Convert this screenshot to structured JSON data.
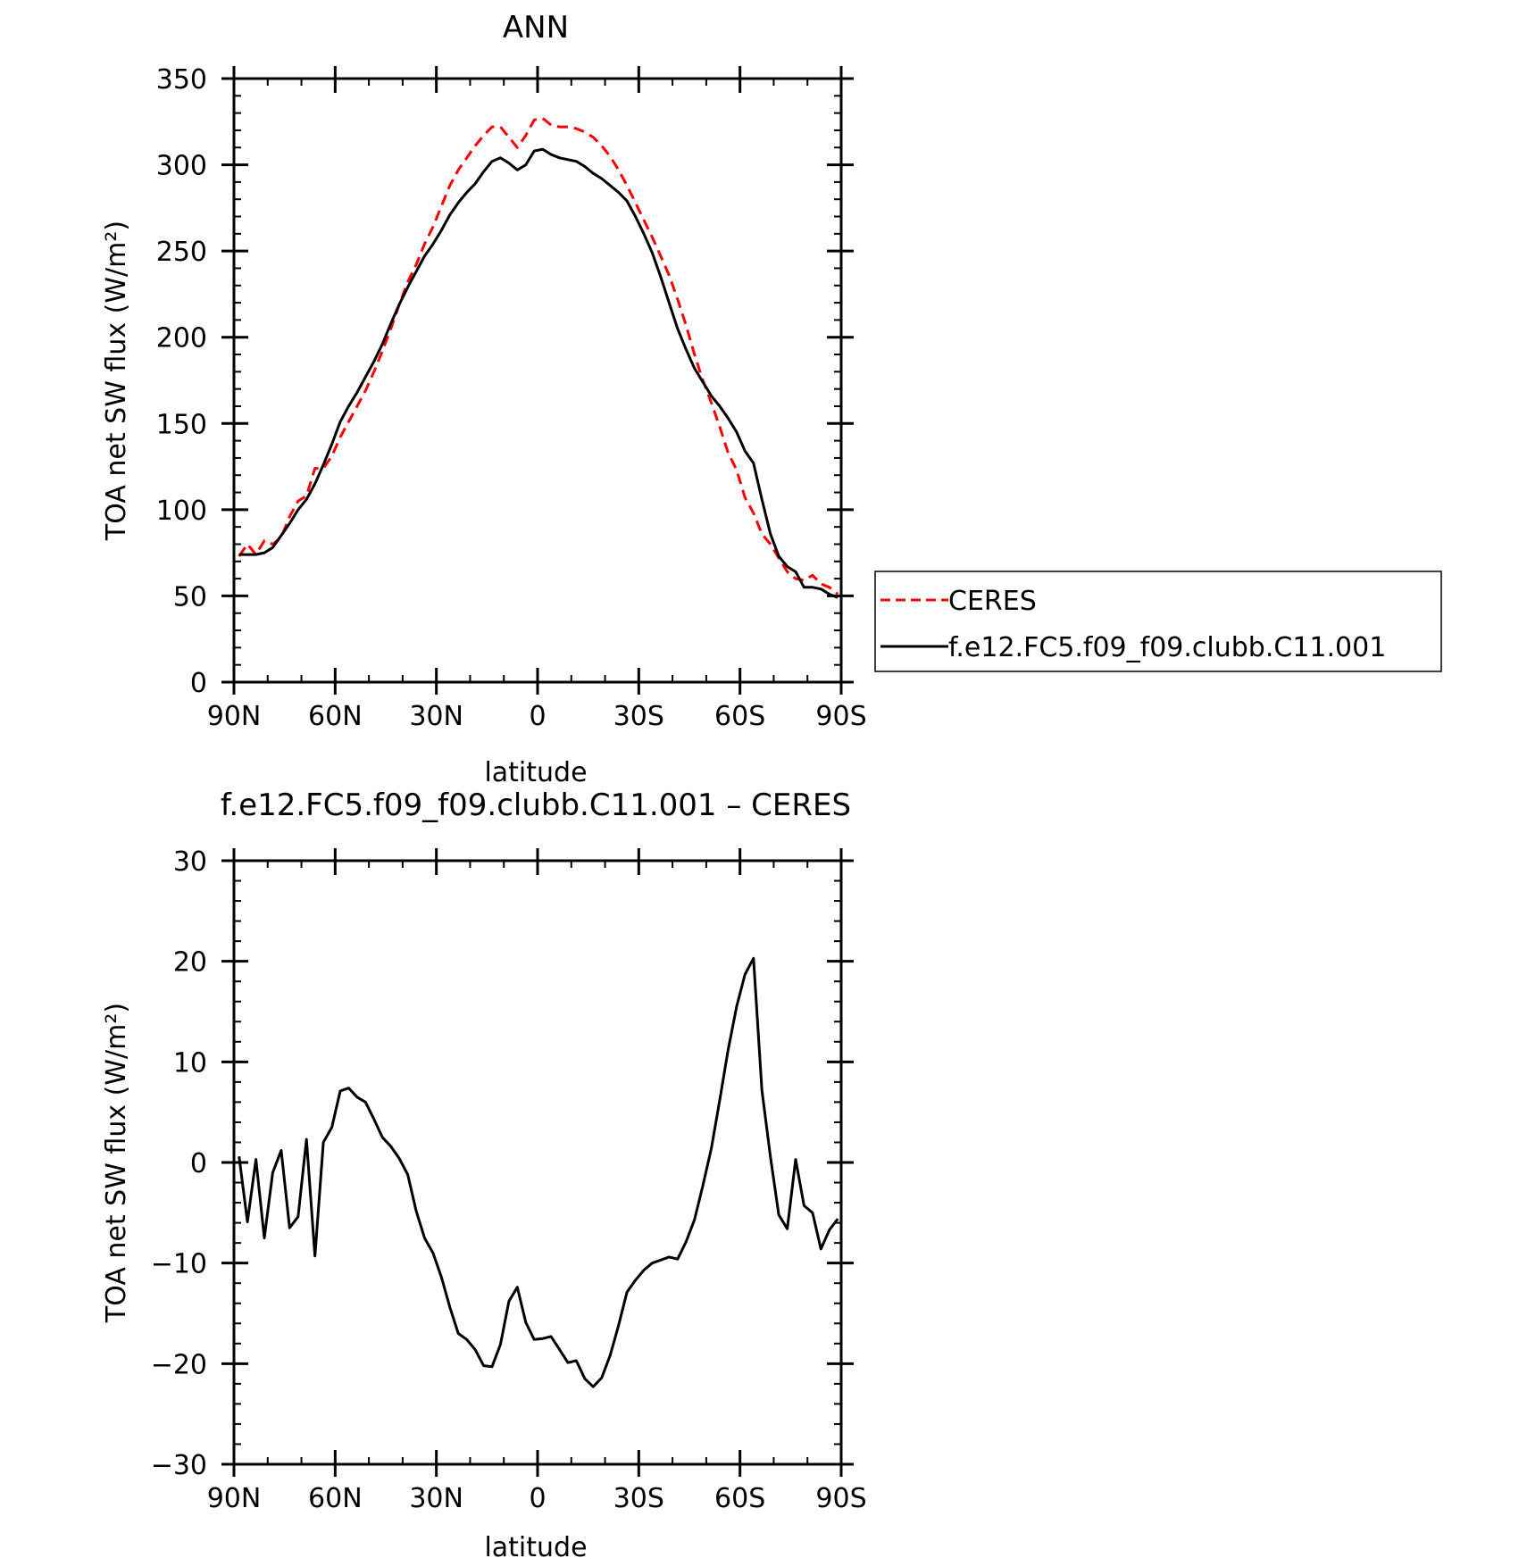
{
  "chart_data": [
    {
      "type": "line",
      "title": "ANN",
      "xlabel": "latitude",
      "ylabel": "TOA net SW flux (W/m²)",
      "xlim": [
        90,
        -90
      ],
      "ylim": [
        0,
        350
      ],
      "xticks": [
        {
          "value": 90,
          "label": "90N"
        },
        {
          "value": 60,
          "label": "60N"
        },
        {
          "value": 30,
          "label": "30N"
        },
        {
          "value": 0,
          "label": "0"
        },
        {
          "value": -30,
          "label": "30S"
        },
        {
          "value": -60,
          "label": "60S"
        },
        {
          "value": -90,
          "label": "90S"
        }
      ],
      "yticks": [
        0,
        50,
        100,
        150,
        200,
        250,
        300,
        350
      ],
      "legend": "right",
      "series": [
        {
          "name": "CERES",
          "color": "#ff0000",
          "dash": true,
          "points": [
            [
              88.5,
              73
            ],
            [
              86,
              80
            ],
            [
              83.5,
              74
            ],
            [
              81,
              82
            ],
            [
              78.5,
              80
            ],
            [
              76,
              84
            ],
            [
              73.5,
              96
            ],
            [
              71,
              105
            ],
            [
              68.5,
              108
            ],
            [
              66,
              124
            ],
            [
              63.5,
              124
            ],
            [
              61,
              131
            ],
            [
              58.5,
              142
            ],
            [
              56,
              151
            ],
            [
              53.5,
              160
            ],
            [
              51,
              169
            ],
            [
              48.5,
              180
            ],
            [
              46,
              192
            ],
            [
              43.5,
              205
            ],
            [
              41,
              219
            ],
            [
              38.5,
              232
            ],
            [
              36,
              242
            ],
            [
              33.5,
              254
            ],
            [
              31,
              264
            ],
            [
              28.5,
              276
            ],
            [
              26,
              288
            ],
            [
              23.5,
              297
            ],
            [
              21,
              304
            ],
            [
              18.5,
              311
            ],
            [
              16,
              317
            ],
            [
              13.5,
              322
            ],
            [
              11,
              322
            ],
            [
              8.5,
              316
            ],
            [
              6,
              310
            ],
            [
              3.5,
              317
            ],
            [
              1,
              326
            ],
            [
              -1.5,
              327
            ],
            [
              -4,
              323
            ],
            [
              -6.5,
              322
            ],
            [
              -9,
              322
            ],
            [
              -11.5,
              321
            ],
            [
              -14,
              319
            ],
            [
              -16.5,
              316
            ],
            [
              -19,
              311
            ],
            [
              -21.5,
              305
            ],
            [
              -24,
              297
            ],
            [
              -26.5,
              288
            ],
            [
              -29,
              278
            ],
            [
              -31.5,
              268
            ],
            [
              -34,
              258
            ],
            [
              -36.5,
              247
            ],
            [
              -39,
              236
            ],
            [
              -41.5,
              222
            ],
            [
              -44,
              207
            ],
            [
              -46.5,
              190
            ],
            [
              -49,
              175
            ],
            [
              -51.5,
              162
            ],
            [
              -54,
              148
            ],
            [
              -56.5,
              133
            ],
            [
              -59,
              123
            ],
            [
              -61.5,
              107
            ],
            [
              -64,
              98
            ],
            [
              -66.5,
              86
            ],
            [
              -69,
              80
            ],
            [
              -71.5,
              72
            ],
            [
              -74,
              64
            ],
            [
              -76.5,
              60
            ],
            [
              -79,
              59
            ],
            [
              -81.5,
              62
            ],
            [
              -84,
              57
            ],
            [
              -86.5,
              55
            ],
            [
              -89,
              51
            ]
          ]
        },
        {
          "name": "f.e12.FC5.f09_f09.clubb.C11.001",
          "color": "#000000",
          "dash": false,
          "points": [
            [
              88.5,
              74
            ],
            [
              86,
              74
            ],
            [
              83.5,
              74
            ],
            [
              81,
              75
            ],
            [
              78.5,
              78
            ],
            [
              76,
              85
            ],
            [
              73.5,
              92
            ],
            [
              71,
              100
            ],
            [
              68.5,
              106
            ],
            [
              66,
              115
            ],
            [
              63.5,
              126
            ],
            [
              61,
              138
            ],
            [
              58.5,
              151
            ],
            [
              56,
              160
            ],
            [
              53.5,
              168
            ],
            [
              51,
              177
            ],
            [
              48.5,
              186
            ],
            [
              46,
              196
            ],
            [
              43.5,
              208
            ],
            [
              41,
              219
            ],
            [
              38.5,
              229
            ],
            [
              36,
              238
            ],
            [
              33.5,
              247
            ],
            [
              31,
              254
            ],
            [
              28.5,
              262
            ],
            [
              26,
              271
            ],
            [
              23.5,
              278
            ],
            [
              21,
              284
            ],
            [
              18.5,
              289
            ],
            [
              16,
              296
            ],
            [
              13.5,
              302
            ],
            [
              11,
              304
            ],
            [
              8.5,
              301
            ],
            [
              6,
              297
            ],
            [
              3.5,
              300
            ],
            [
              1,
              308
            ],
            [
              -1.5,
              309
            ],
            [
              -4,
              306
            ],
            [
              -6.5,
              304
            ],
            [
              -9,
              303
            ],
            [
              -11.5,
              302
            ],
            [
              -14,
              299
            ],
            [
              -16.5,
              295
            ],
            [
              -19,
              292
            ],
            [
              -21.5,
              288
            ],
            [
              -24,
              284
            ],
            [
              -26.5,
              279
            ],
            [
              -29,
              270
            ],
            [
              -31.5,
              260
            ],
            [
              -34,
              249
            ],
            [
              -36.5,
              235
            ],
            [
              -39,
              220
            ],
            [
              -41.5,
              205
            ],
            [
              -44,
              193
            ],
            [
              -46.5,
              182
            ],
            [
              -49,
              174
            ],
            [
              -51.5,
              166
            ],
            [
              -54,
              160
            ],
            [
              -56.5,
              153
            ],
            [
              -59,
              145
            ],
            [
              -61.5,
              134
            ],
            [
              -64,
              127
            ],
            [
              -66.5,
              106
            ],
            [
              -69,
              86
            ],
            [
              -71.5,
              73
            ],
            [
              -74,
              67
            ],
            [
              -76.5,
              64
            ],
            [
              -79,
              55
            ],
            [
              -81.5,
              55
            ],
            [
              -84,
              54
            ],
            [
              -86.5,
              51
            ],
            [
              -89,
              49
            ]
          ]
        }
      ]
    },
    {
      "type": "line",
      "title": "f.e12.FC5.f09_f09.clubb.C11.001 – CERES",
      "xlabel": "latitude",
      "ylabel": "TOA net SW flux (W/m²)",
      "xlim": [
        90,
        -90
      ],
      "ylim": [
        -30,
        30
      ],
      "xticks": [
        {
          "value": 90,
          "label": "90N"
        },
        {
          "value": 60,
          "label": "60N"
        },
        {
          "value": 30,
          "label": "30N"
        },
        {
          "value": 0,
          "label": "0"
        },
        {
          "value": -30,
          "label": "30S"
        },
        {
          "value": -60,
          "label": "60S"
        },
        {
          "value": -90,
          "label": "90S"
        }
      ],
      "yticks": [
        -30,
        -20,
        -10,
        0,
        10,
        20,
        30
      ],
      "series": [
        {
          "color": "#000000",
          "dash": false,
          "points": [
            [
              88.5,
              0.6
            ],
            [
              86,
              -5.9
            ],
            [
              83.5,
              0.3
            ],
            [
              81,
              -7.5
            ],
            [
              78.5,
              -1.0
            ],
            [
              76,
              1.2
            ],
            [
              73.5,
              -6.5
            ],
            [
              71,
              -5.4
            ],
            [
              68.5,
              2.3
            ],
            [
              66,
              -9.3
            ],
            [
              63.5,
              2.0
            ],
            [
              61,
              3.5
            ],
            [
              58.5,
              7.1
            ],
            [
              56,
              7.4
            ],
            [
              53.5,
              6.5
            ],
            [
              51,
              6.0
            ],
            [
              48.5,
              4.3
            ],
            [
              46,
              2.5
            ],
            [
              43.5,
              1.6
            ],
            [
              41,
              0.4
            ],
            [
              38.5,
              -1.2
            ],
            [
              36,
              -4.8
            ],
            [
              33.5,
              -7.5
            ],
            [
              31,
              -9.0
            ],
            [
              28.5,
              -11.4
            ],
            [
              26,
              -14.4
            ],
            [
              23.5,
              -17.0
            ],
            [
              21,
              -17.6
            ],
            [
              18.5,
              -18.6
            ],
            [
              16,
              -20.2
            ],
            [
              13.5,
              -20.3
            ],
            [
              11,
              -18.1
            ],
            [
              8.5,
              -13.8
            ],
            [
              6,
              -12.4
            ],
            [
              3.5,
              -15.9
            ],
            [
              1,
              -17.6
            ],
            [
              -1.5,
              -17.5
            ],
            [
              -4,
              -17.3
            ],
            [
              -6.5,
              -18.6
            ],
            [
              -9,
              -19.9
            ],
            [
              -11.5,
              -19.7
            ],
            [
              -14,
              -21.5
            ],
            [
              -16.5,
              -22.3
            ],
            [
              -19,
              -21.4
            ],
            [
              -21.5,
              -19.2
            ],
            [
              -24,
              -16.2
            ],
            [
              -26.5,
              -12.9
            ],
            [
              -29,
              -11.7
            ],
            [
              -31.5,
              -10.7
            ],
            [
              -34,
              -10.0
            ],
            [
              -36.5,
              -9.7
            ],
            [
              -39,
              -9.4
            ],
            [
              -41.5,
              -9.6
            ],
            [
              -44,
              -7.9
            ],
            [
              -46.5,
              -5.7
            ],
            [
              -49,
              -2.3
            ],
            [
              -51.5,
              1.4
            ],
            [
              -54,
              6.2
            ],
            [
              -56.5,
              11.2
            ],
            [
              -59,
              15.5
            ],
            [
              -61.5,
              18.7
            ],
            [
              -64,
              20.3
            ],
            [
              -66.5,
              7.2
            ],
            [
              -69,
              0.6
            ],
            [
              -71.5,
              -5.2
            ],
            [
              -74,
              -6.6
            ],
            [
              -76.5,
              0.3
            ],
            [
              -79,
              -4.3
            ],
            [
              -81.5,
              -5.0
            ],
            [
              -84,
              -8.6
            ],
            [
              -86.5,
              -6.7
            ],
            [
              -89,
              -5.6
            ]
          ]
        }
      ]
    }
  ]
}
